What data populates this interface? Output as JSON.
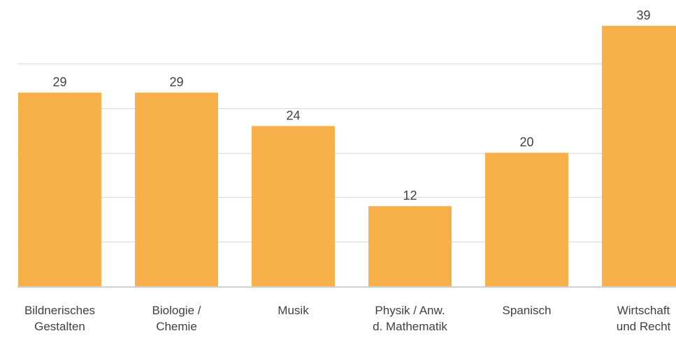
{
  "chart_data": {
    "type": "bar",
    "categories": [
      [
        "Bildnerisches",
        "Gestalten"
      ],
      [
        "Biologie /",
        "Chemie"
      ],
      [
        "Musik"
      ],
      [
        "Physik / Anw.",
        "d. Mathematik"
      ],
      [
        "Spanisch"
      ],
      [
        "Wirtschaft",
        "und Recht"
      ]
    ],
    "values": [
      29,
      29,
      24,
      12,
      20,
      39
    ],
    "data_labels": [
      "29",
      "29",
      "24",
      "12",
      "20",
      "39"
    ],
    "ylim": [
      0,
      40
    ],
    "y_grid_step": 6.67,
    "grid": true,
    "legend": "none",
    "colors": {
      "bar": "#f7b04a",
      "grid": "#d9d9d9",
      "text": "#404040"
    }
  }
}
